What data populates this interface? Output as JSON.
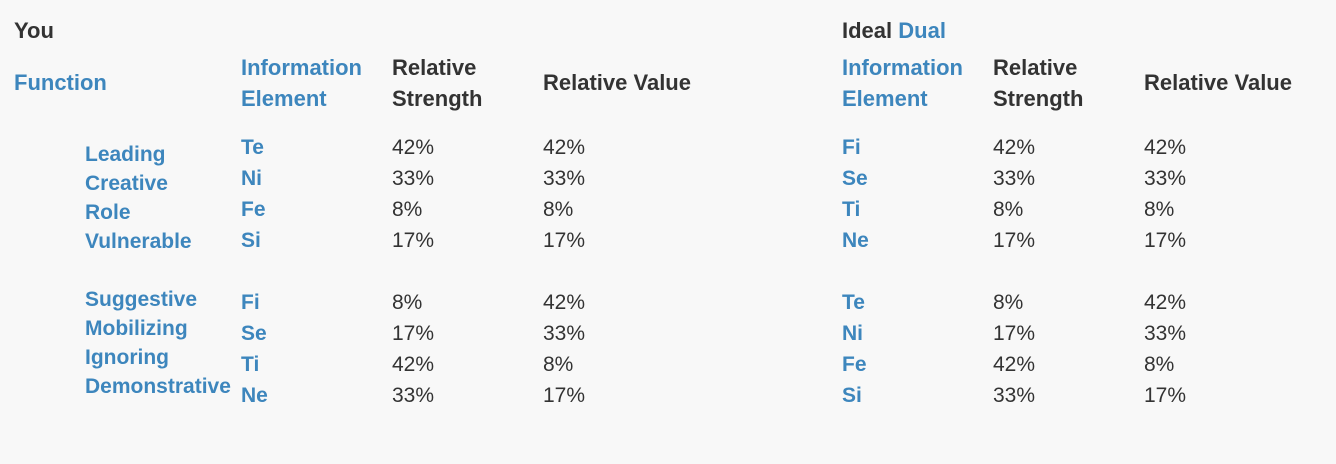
{
  "you": {
    "title": "You",
    "headers": {
      "function": "Function",
      "info_line1": "Information",
      "info_line2": "Element",
      "strength_line1": "Relative",
      "strength_line2": "Strength",
      "value": "Relative Value"
    },
    "functions_top": [
      "Leading",
      "Creative",
      "Role",
      "Vulnerable"
    ],
    "functions_bottom": [
      "Suggestive",
      "Mobilizing",
      "Ignoring",
      "Demonstrative"
    ],
    "elements_top": [
      "Te",
      "Ni",
      "Fe",
      "Si"
    ],
    "elements_bottom": [
      "Fi",
      "Se",
      "Ti",
      "Ne"
    ],
    "strength_top": [
      "42%",
      "33%",
      "8%",
      "17%"
    ],
    "strength_bottom": [
      "8%",
      "17%",
      "42%",
      "33%"
    ],
    "value_top": [
      "42%",
      "33%",
      "8%",
      "17%"
    ],
    "value_bottom": [
      "42%",
      "33%",
      "8%",
      "17%"
    ]
  },
  "dual": {
    "title_prefix": "Ideal",
    "title_accent": "Dual",
    "headers": {
      "info_line1": "Information",
      "info_line2": "Element",
      "strength_line1": "Relative",
      "strength_line2": "Strength",
      "value": "Relative Value"
    },
    "elements_top": [
      "Fi",
      "Se",
      "Ti",
      "Ne"
    ],
    "elements_bottom": [
      "Te",
      "Ni",
      "Fe",
      "Si"
    ],
    "strength_top": [
      "42%",
      "33%",
      "8%",
      "17%"
    ],
    "strength_bottom": [
      "8%",
      "17%",
      "42%",
      "33%"
    ],
    "value_top": [
      "42%",
      "33%",
      "8%",
      "17%"
    ],
    "value_bottom": [
      "42%",
      "33%",
      "8%",
      "17%"
    ]
  },
  "colors": {
    "accent": "#3d86bd",
    "text": "#333333",
    "background": "#f8f8f8"
  }
}
